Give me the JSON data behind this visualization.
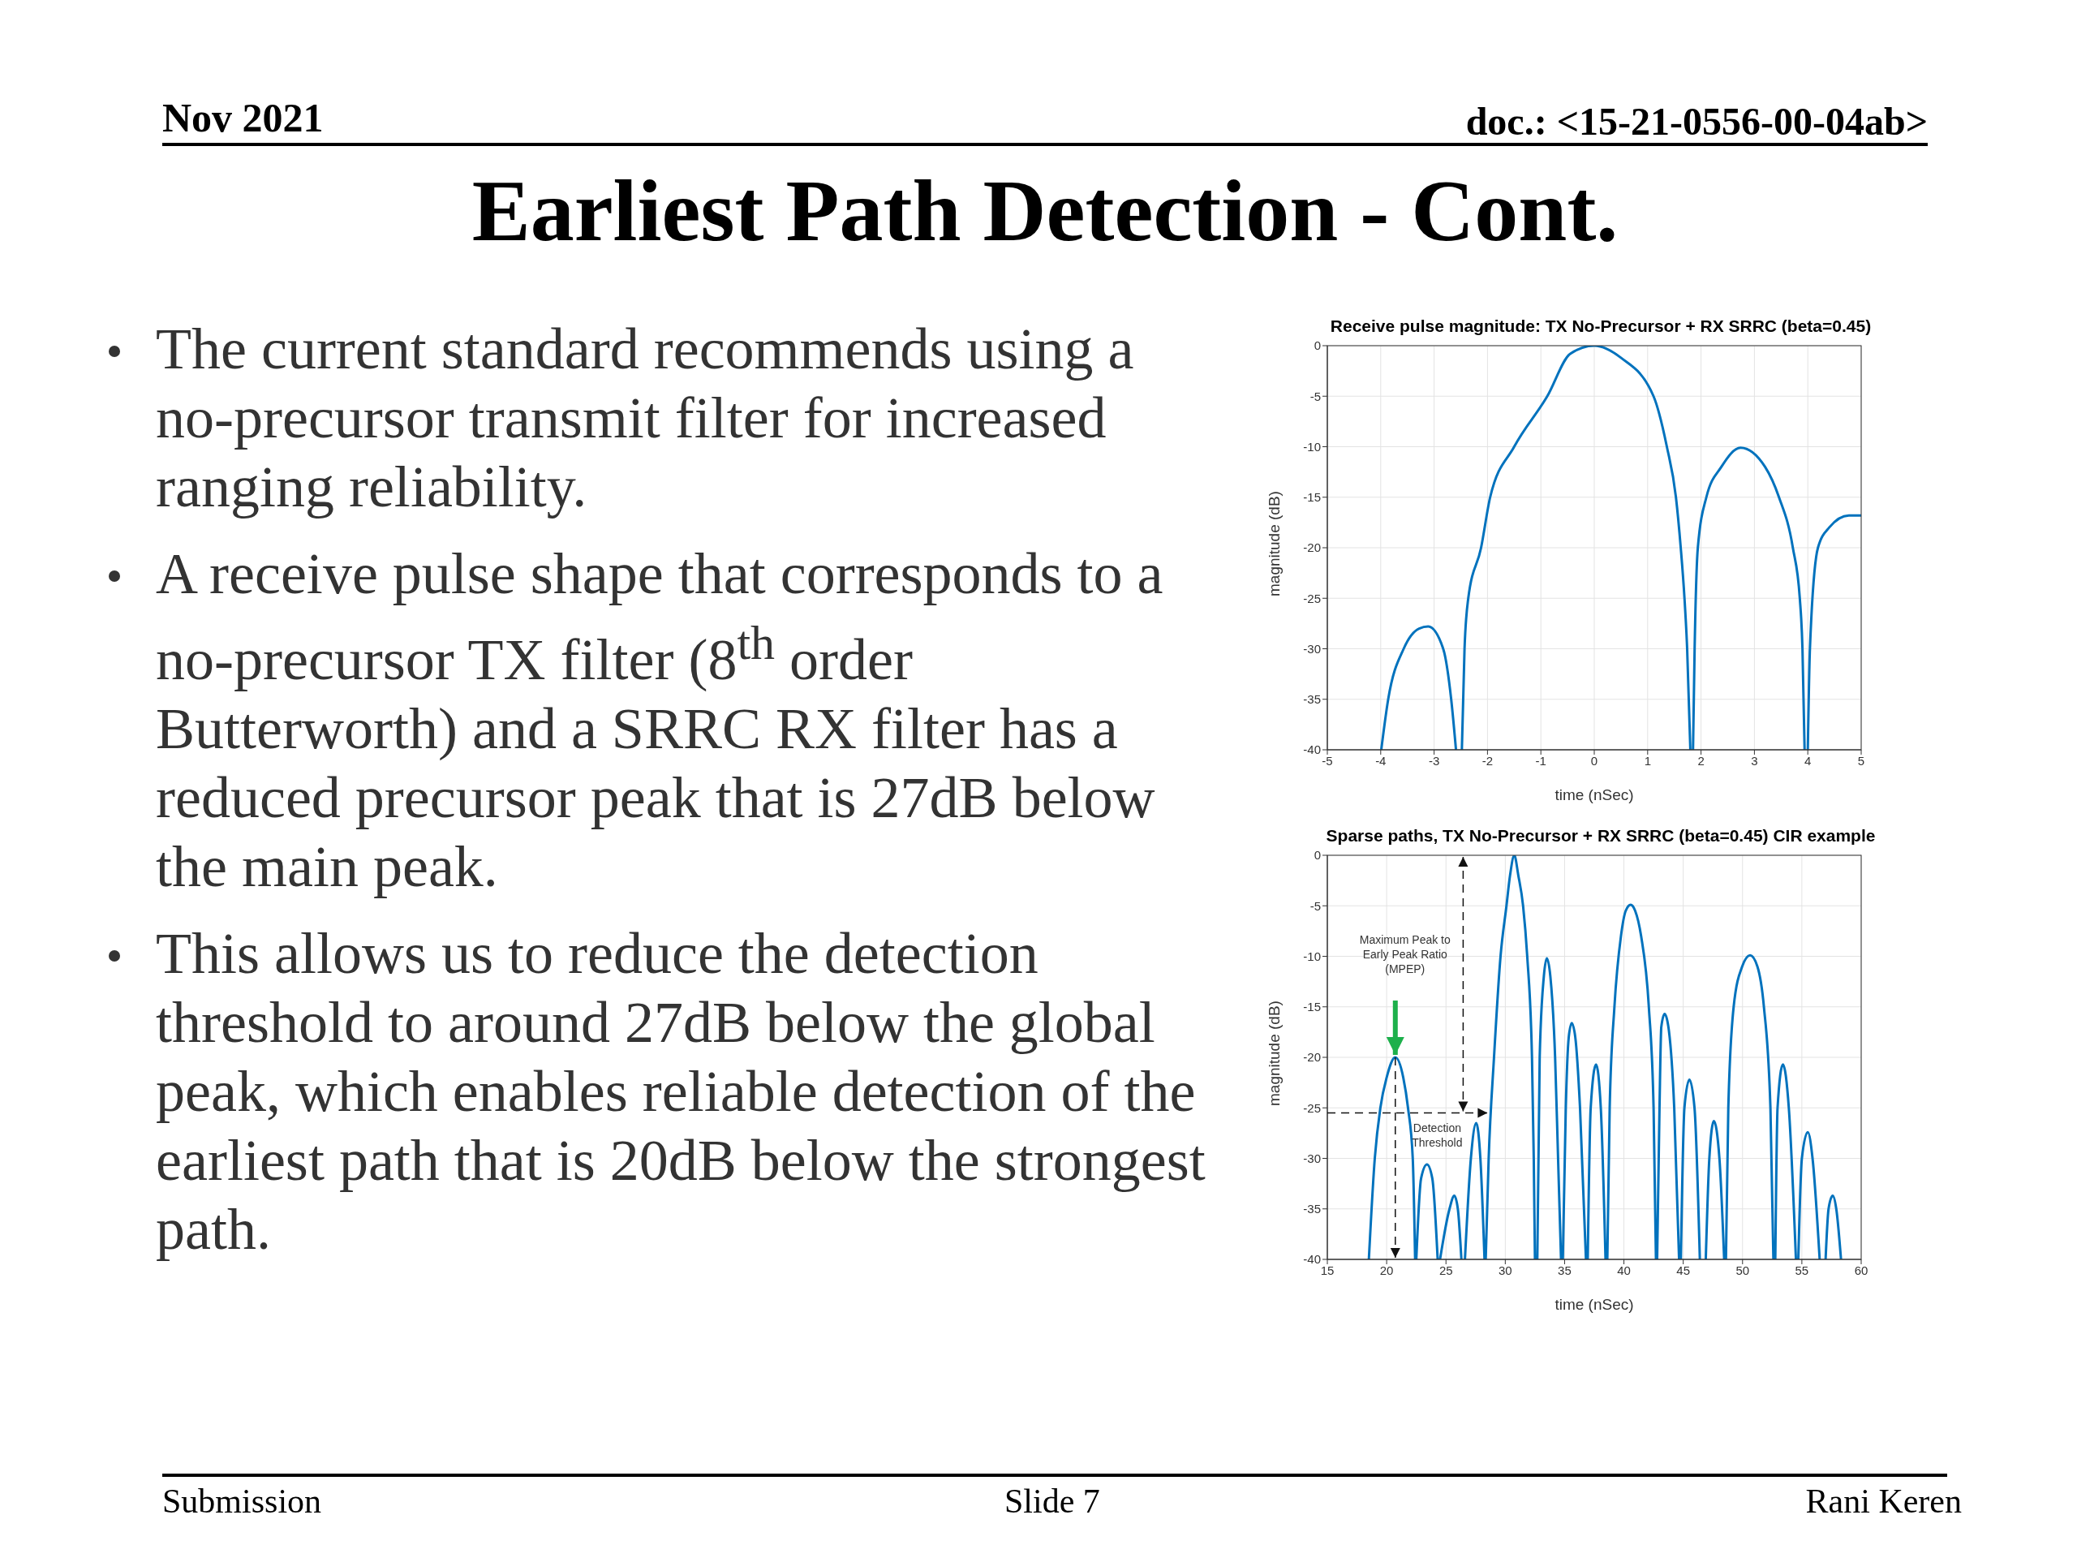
{
  "chart_data": [
    {
      "type": "other",
      "title": "Earliest Path Detection - Cont.",
      "annotations": [
        "Nov 2021",
        "doc.: <15-21-0556-00-04ab>",
        "The current standard recommends using a no-precursor transmit filter for increased ranging reliability.",
        "A receive pulse shape that corresponds to a no-precursor TX filter (8$^{th}$ order Butterworth) and a SRRC RX filter has a reduced precursor peak that is 27dB below the main peak.",
        "This allows us to reduce the detection threshold to around 27dB below the global peak, which enables reliable detection of the earliest path that is 20dB below the strongest path.",
        "Submission",
        "Slide 7",
        "Rani Keren"
      ]
    },
    {
      "type": "line",
      "title": "Receive pulse magnitude: TX No-Precursor + RX SRRC (beta=0.45)",
      "xlabel": "time (nSec)",
      "ylabel": "magnitude (dB)",
      "xlim": [
        -5,
        5
      ],
      "xticks": [
        -5,
        -4,
        -3,
        -2,
        -1,
        0,
        1,
        2,
        3,
        4,
        5
      ],
      "ylim": [
        -40,
        0
      ],
      "yticks": [
        -40,
        -35,
        -30,
        -25,
        -20,
        -15,
        -10,
        -5,
        0
      ],
      "grid": true,
      "marker": "none",
      "line_style": "solid",
      "x": [
        -3.99,
        -3.86,
        -3.57,
        -3.28,
        -3.11,
        -2.83,
        -2.68,
        -2.59,
        -2.54,
        -2.48,
        -2.43,
        -2.36,
        -2.12,
        -1.95,
        -1.5,
        -0.88,
        -0.45,
        0,
        0.5,
        1.11,
        1.36,
        1.53,
        1.62,
        1.69,
        1.74,
        1.8,
        1.82,
        1.85,
        1.88,
        1.94,
        2.1,
        2.38,
        2.74,
        3.2,
        3.46,
        3.72,
        3.85,
        3.9,
        3.94,
        3.97,
        4.0,
        4.04,
        4.19,
        4.4,
        4.77,
        5
      ],
      "series": [
        {
          "color": "#0072bd",
          "values": [
            -40,
            -35,
            -30,
            -28,
            -27.8,
            -30,
            -35,
            -40,
            null,
            -40,
            -30,
            -25,
            -20,
            -15,
            -10,
            -5,
            -0.8,
            0,
            -1.2,
            -5,
            -10,
            -15,
            -20,
            -25,
            -30,
            -40,
            null,
            -40,
            -30,
            -20,
            -15,
            -12,
            -10.1,
            -12,
            -15,
            -20,
            -25,
            -30,
            -40,
            null,
            -40,
            -30,
            -20,
            -18,
            -16.8,
            -16.8
          ]
        }
      ]
    },
    {
      "type": "line",
      "title": "Sparse paths, TX No-Precursor + RX SRRC (beta=0.45) CIR example",
      "xlabel": "time (nSec)",
      "ylabel": "magnitude (dB)",
      "xlim": [
        15,
        60
      ],
      "xticks": [
        15,
        20,
        25,
        30,
        35,
        40,
        45,
        50,
        55,
        60
      ],
      "ylim": [
        -40,
        0
      ],
      "yticks": [
        -40,
        -35,
        -30,
        -25,
        -20,
        -15,
        -10,
        -5,
        0
      ],
      "grid": true,
      "marker": "none",
      "line_style": "solid",
      "annotations": [
        "Maximum Peak to\nEarly Peak Ratio\n(MPEP)",
        {
          "text": "Detection\nThreshold",
          "x": 28.5,
          "y": -25.5
        }
      ],
      "x": [
        18.5,
        19.0,
        19.47,
        20.0,
        20.73,
        21.4,
        21.8,
        22.2,
        22.4,
        22.45,
        22.5,
        22.9,
        23.4,
        23.85,
        24.3,
        24.4,
        24.5,
        25.3,
        25.7,
        26.0,
        26.3,
        26.45,
        26.6,
        27.1,
        27.55,
        27.9,
        28.25,
        28.3,
        28.35,
        28.6,
        29.05,
        29.6,
        30.1,
        30.4,
        30.76,
        31.1,
        31.5,
        31.85,
        32.25,
        32.4,
        32.5,
        32.6,
        32.7,
        32.9,
        33.25,
        33.5,
        33.8,
        34.2,
        34.45,
        34.7,
        34.78,
        34.85,
        35.1,
        35.35,
        35.6,
        35.9,
        36.3,
        36.8,
        36.88,
        36.95,
        37.2,
        37.65,
        38.05,
        38.45,
        38.52,
        38.6,
        38.8,
        39.2,
        39.75,
        40.15,
        40.57,
        40.95,
        41.45,
        42.1,
        42.5,
        42.7,
        42.75,
        42.8,
        43.0,
        43.15,
        43.43,
        43.75,
        44.24,
        44.65,
        44.72,
        44.8,
        45.1,
        45.52,
        45.95,
        46.4,
        46.65,
        46.9,
        47.2,
        47.58,
        48.05,
        48.45,
        48.52,
        48.6,
        48.8,
        49.25,
        49.97,
        50.64,
        51.25,
        51.8,
        52.35,
        52.6,
        52.68,
        52.76,
        52.95,
        53.4,
        53.9,
        54.5,
        54.6,
        54.7,
        55.0,
        55.5,
        55.9,
        56.5,
        56.75,
        57.0,
        57.25,
        57.6,
        57.9,
        58.3
      ],
      "series": [
        {
          "color": "#0072bd",
          "values": [
            -40,
            -30,
            -25,
            -22,
            -20,
            -22,
            -25,
            -30,
            -40,
            null,
            -40,
            -32,
            -30.6,
            -32,
            -40,
            null,
            -40,
            -35,
            -33.7,
            -35,
            -40,
            null,
            -40,
            -30,
            -26.5,
            -30,
            -40,
            null,
            -40,
            -30,
            -20,
            -10,
            -5,
            -2,
            0,
            -2,
            -5,
            -10,
            -20,
            -30,
            -40,
            null,
            -40,
            -20,
            -12,
            -10.2,
            -12,
            -20,
            -30,
            -40,
            null,
            -40,
            -25,
            -18,
            -16.6,
            -18,
            -25,
            -40,
            null,
            -40,
            -25,
            -20.7,
            -25,
            -40,
            null,
            -40,
            -25,
            -15,
            -8,
            -5.5,
            -4.9,
            -5.5,
            -8,
            -15,
            -25,
            -40,
            null,
            -40,
            -25,
            -17,
            -15.7,
            -17,
            -25,
            -40,
            null,
            -40,
            -25,
            -22.2,
            -25,
            -40,
            null,
            -40,
            -30,
            -26.3,
            -30,
            -40,
            null,
            -40,
            -25,
            -15,
            -11,
            -9.9,
            -11,
            -15,
            -25,
            -40,
            null,
            -40,
            -25,
            -20.7,
            -25,
            -40,
            null,
            -40,
            -30,
            -27.4,
            -30,
            -40,
            null,
            -40,
            -35,
            -33.7,
            -35,
            -40
          ]
        }
      ]
    }
  ]
}
